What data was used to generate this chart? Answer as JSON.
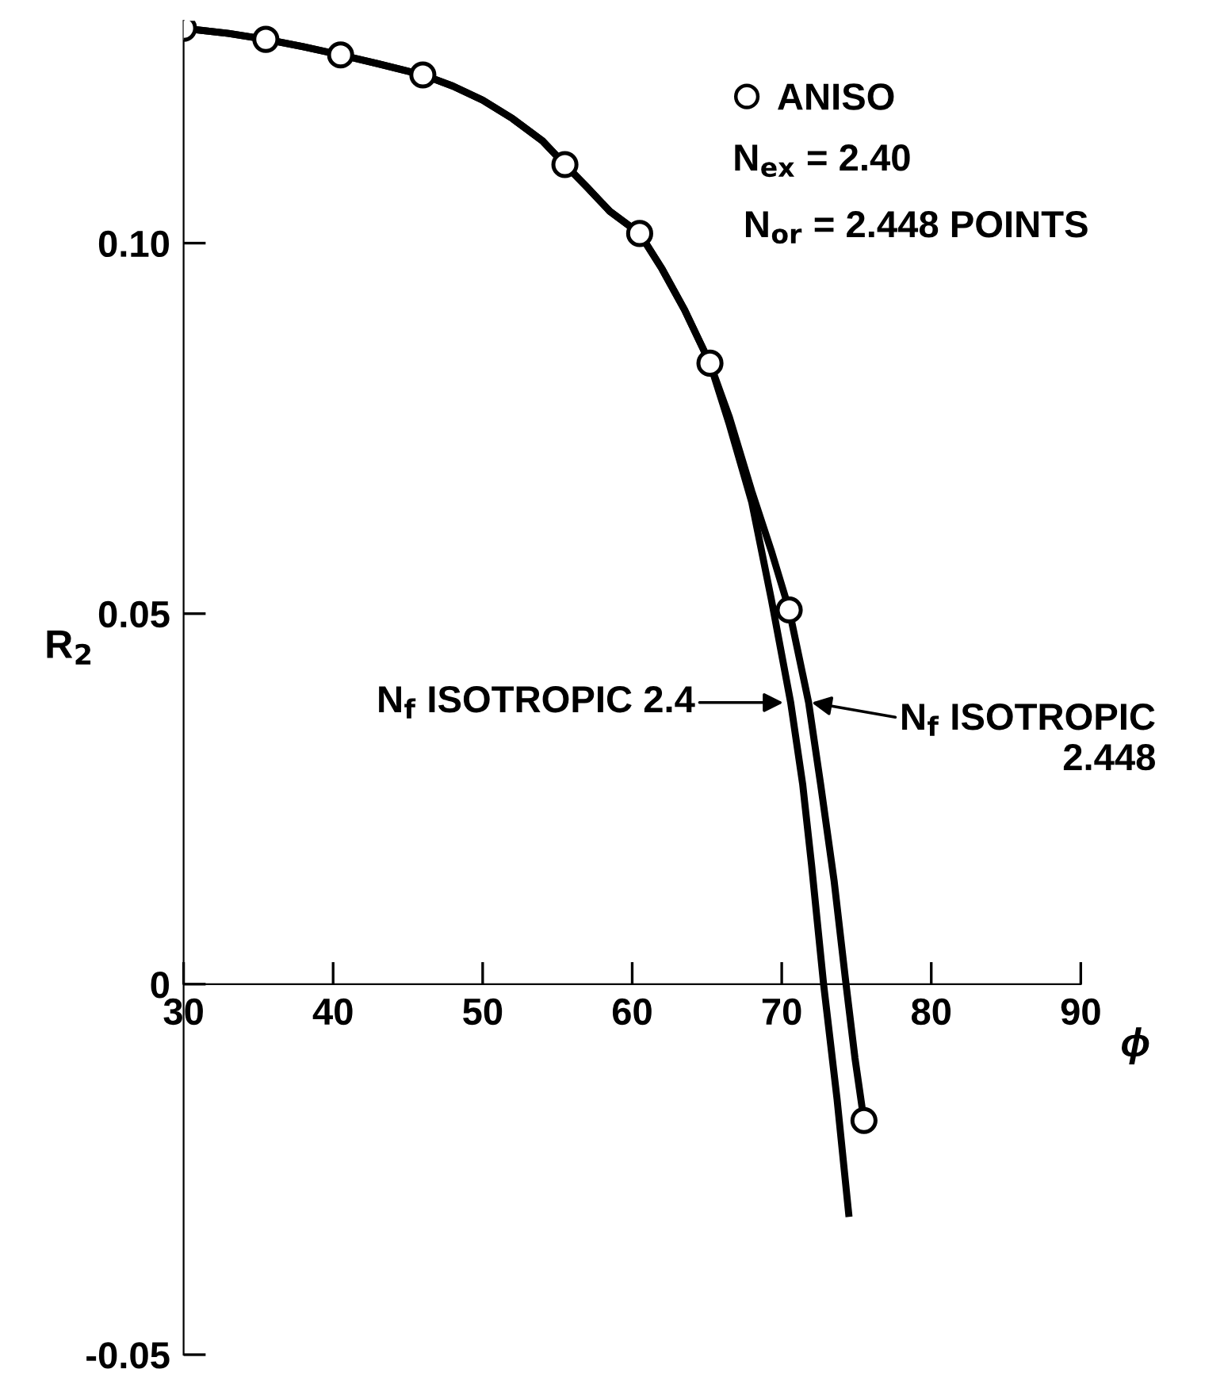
{
  "chart_data": {
    "type": "line",
    "xlabel": "ϕ",
    "ylabel": "R$_{2}$",
    "xlim": [
      30,
      90
    ],
    "xticks": [
      30,
      40,
      50,
      60,
      70,
      80,
      90
    ],
    "ylim": [
      -0.05,
      0.13
    ],
    "yticks": [
      {
        "value": -0.05,
        "label": "-0.05"
      },
      0,
      {
        "value": 0.05,
        "label": "0.05"
      },
      {
        "value": 0.1,
        "label": "0.10"
      }
    ],
    "grid": false,
    "legend": "top right",
    "series": [
      {
        "color": "#000000",
        "line_style": "solid",
        "marker": "none",
        "x": [
          30,
          33,
          35.5,
          38,
          40.5,
          43,
          46,
          48,
          50,
          52,
          54,
          55.5,
          57,
          58.5,
          60.5,
          62,
          63.5,
          65.2,
          66.5,
          68,
          69.3,
          70.5,
          71.8,
          72.6,
          73.5,
          74.3,
          74.9,
          75.5
        ],
        "values": [
          0.129,
          0.1283,
          0.1275,
          0.1265,
          0.1254,
          0.1242,
          0.1227,
          0.1212,
          0.1193,
          0.1168,
          0.1138,
          0.1106,
          0.1075,
          0.1043,
          0.1013,
          0.0965,
          0.091,
          0.0838,
          0.0765,
          0.0665,
          0.0585,
          0.0505,
          0.038,
          0.027,
          0.014,
          0.0,
          -0.01,
          -0.0184
        ]
      },
      {
        "color": "#000000",
        "line_style": "solid",
        "marker": "none",
        "x": [
          30,
          33,
          35.5,
          38,
          40.5,
          43,
          46,
          48,
          50,
          52,
          54,
          55.5,
          57,
          58.5,
          60.5,
          62,
          63.5,
          65.2,
          66.5,
          68,
          69.3,
          70.6,
          71.4,
          72.0,
          72.8,
          73.7,
          74.5
        ],
        "values": [
          0.129,
          0.1283,
          0.1275,
          0.1265,
          0.1254,
          0.1242,
          0.1227,
          0.1212,
          0.1193,
          0.1168,
          0.1138,
          0.1106,
          0.1075,
          0.1043,
          0.1013,
          0.0965,
          0.091,
          0.0838,
          0.0755,
          0.065,
          0.052,
          0.038,
          0.027,
          0.016,
          0.0,
          -0.0155,
          -0.0314
        ]
      },
      {
        "type": "scatter",
        "name": "ANISO",
        "color": "#000000",
        "marker": "circle",
        "x": [
          30,
          35.5,
          40.5,
          46,
          55.5,
          60.5,
          65.2,
          70.5,
          75.5
        ],
        "values": [
          0.129,
          0.1275,
          0.1254,
          0.1227,
          0.1106,
          0.1013,
          0.0838,
          0.0505,
          -0.0184
        ]
      }
    ],
    "annotations": [
      "N$_{ex}$ = 2.40",
      "N$_{or}$ = 2.448 POINTS",
      {
        "text": "N$_{f}$ ISOTROPIC 2.4",
        "x": 70.1,
        "y": 0.038
      },
      {
        "text": "N$_{f}$ ISOTROPIC\n2.448",
        "x": 72.0,
        "y": 0.038
      }
    ]
  }
}
